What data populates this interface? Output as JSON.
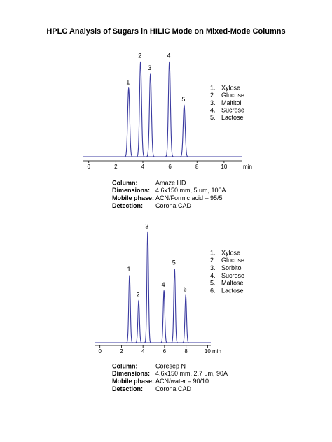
{
  "title": "HPLC Analysis of Sugars in HILIC Mode on Mixed-Mode Columns",
  "chart_data": [
    {
      "type": "line",
      "x": [
        2.95,
        3.83,
        4.56,
        5.96,
        7.05
      ],
      "values": [
        72,
        100,
        87,
        100,
        54
      ],
      "peak_labels": [
        "1",
        "2",
        "3",
        "4",
        "5"
      ],
      "color": "#3a3aa0",
      "xlim": [
        -0.4,
        11.3
      ],
      "xticks": [
        0,
        2,
        4,
        6,
        8,
        10
      ],
      "ylim": [
        0,
        100
      ],
      "xlabel": "min",
      "legend": [
        {
          "number": "1.",
          "name": "Xylose"
        },
        {
          "number": "2.",
          "name": "Glucose"
        },
        {
          "number": "3.",
          "name": "Maltitol"
        },
        {
          "number": "4.",
          "name": "Sucrose"
        },
        {
          "number": "5.",
          "name": "Lactose"
        }
      ],
      "details": [
        {
          "label": "Column:",
          "value": "Amaze HD"
        },
        {
          "label": "Dimensions:",
          "value": "4.6x150 mm, 5 um, 100A"
        },
        {
          "label": "Mobile phase:",
          "value": "ACN/Formic acid – 95/5"
        },
        {
          "label": "Detection:",
          "value": "Corona  CAD"
        }
      ]
    },
    {
      "type": "line",
      "x": [
        2.75,
        3.6,
        4.44,
        5.95,
        6.93,
        7.97
      ],
      "values": [
        61,
        38,
        100,
        47,
        67,
        43
      ],
      "peak_labels": [
        "1",
        "2",
        "3",
        "4",
        "5",
        "6"
      ],
      "color": "#3a3aa0",
      "xlim": [
        -0.5,
        10.3
      ],
      "xticks": [
        0,
        2,
        4,
        6,
        8,
        10
      ],
      "ylim": [
        0,
        100
      ],
      "xlabel": "min",
      "legend": [
        {
          "number": "1.",
          "name": "Xylose"
        },
        {
          "number": "2.",
          "name": "Glucose"
        },
        {
          "number": "3.",
          "name": "Sorbitol"
        },
        {
          "number": "4.",
          "name": "Sucrose"
        },
        {
          "number": "5.",
          "name": "Maltose"
        },
        {
          "number": "6.",
          "name": "Lactose"
        }
      ],
      "details": [
        {
          "label": "Column:",
          "value": "Coresep  N"
        },
        {
          "label": "Dimensions:",
          "value": "4.6x150 mm, 2.7 um, 90A"
        },
        {
          "label": "Mobile phase:",
          "value": "ACN/water – 90/10"
        },
        {
          "label": "Detection:",
          "value": "Corona  CAD"
        }
      ]
    }
  ]
}
